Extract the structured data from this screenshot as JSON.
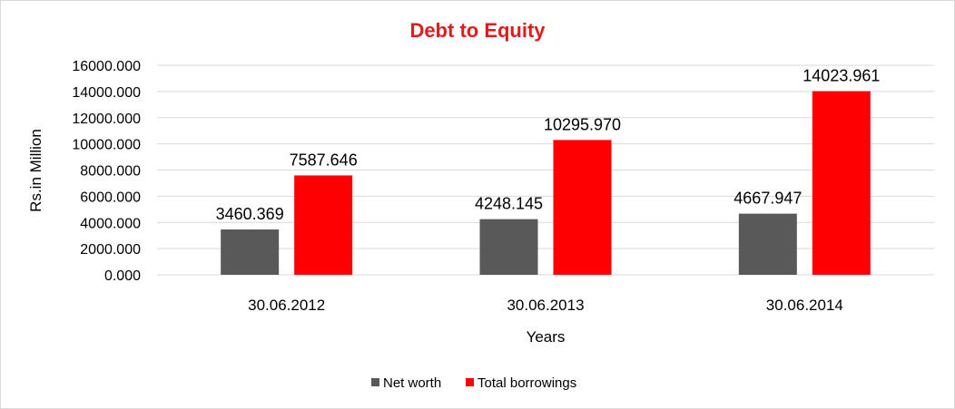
{
  "chart_data": {
    "type": "bar",
    "title": "Debt to Equity",
    "xlabel": "Years",
    "ylabel": "Rs.in Million",
    "categories": [
      "30.06.2012",
      "30.06.2013",
      "30.06.2014"
    ],
    "series": [
      {
        "name": "Net worth",
        "color": "#595959",
        "values": [
          3460.369,
          4248.145,
          4667.947
        ],
        "labels": [
          "3460.369",
          "4248.145",
          "4667.947"
        ]
      },
      {
        "name": "Total borrowings",
        "color": "#ff0000",
        "values": [
          7587.646,
          10295.97,
          14023.961
        ],
        "labels": [
          "7587.646",
          "10295.970",
          "14023.961"
        ]
      }
    ],
    "ylim": [
      0,
      16000
    ],
    "yticks": [
      0,
      2000,
      4000,
      6000,
      8000,
      10000,
      12000,
      14000,
      16000
    ],
    "ytick_labels": [
      "0.000",
      "2000.000",
      "4000.000",
      "6000.000",
      "8000.000",
      "10000.000",
      "12000.000",
      "14000.000",
      "16000.000"
    ],
    "grid": true,
    "legend_position": "bottom",
    "title_color": "#e31b1b"
  }
}
